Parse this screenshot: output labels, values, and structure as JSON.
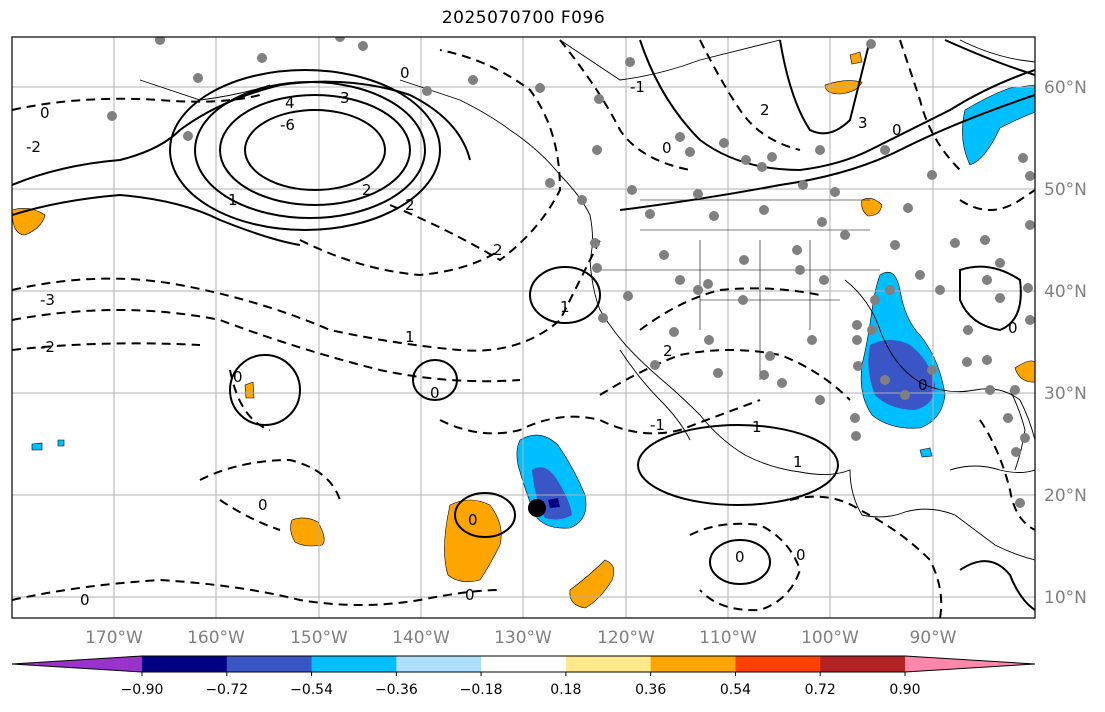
{
  "title": "2025070700 F096",
  "map": {
    "lon_labels": [
      "170°W",
      "160°W",
      "150°W",
      "140°W",
      "130°W",
      "120°W",
      "110°W",
      "100°W",
      "90°W"
    ],
    "lat_labels": [
      "60°N",
      "50°N",
      "40°N",
      "30°N",
      "20°N",
      "10°N"
    ],
    "gridlines": true,
    "station_color": "#808080",
    "contour_color": "#000000",
    "contour_labels": [
      "0",
      "3",
      "-6",
      "4",
      "2",
      "1",
      "-2",
      "0",
      "2",
      "-3",
      "-2",
      "1",
      "0",
      "0",
      "0",
      "2",
      "1",
      "2",
      "0",
      "1",
      "1",
      "0",
      "-1",
      "0",
      "0",
      "3",
      "2",
      "0",
      "-1",
      "0",
      "0",
      "0",
      "0"
    ]
  },
  "colorbar": {
    "ticks": [
      "−0.90",
      "−0.72",
      "−0.54",
      "−0.36",
      "−0.18",
      "0.18",
      "0.36",
      "0.54",
      "0.72",
      "0.90"
    ],
    "colors": [
      "#9933cc",
      "#000080",
      "#3a55c6",
      "#00bfff",
      "#ade0ff",
      "#ffffff",
      "#ffe98a",
      "#ffa500",
      "#ff4000",
      "#b22222",
      "#ff88aa"
    ]
  }
}
